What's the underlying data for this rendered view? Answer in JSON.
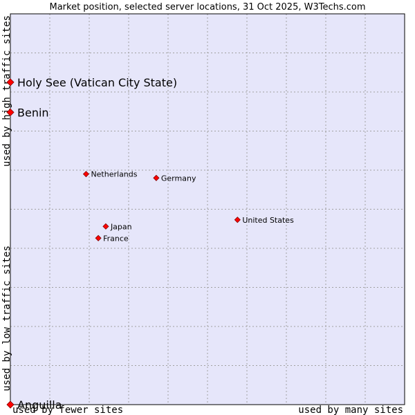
{
  "chart_data": {
    "type": "scatter",
    "title": "Market position, selected server locations, 31 Oct 2025, W3Techs.com",
    "xlabel_left": "used by fewer sites",
    "xlabel_right": "used by many sites",
    "ylabel_bottom": "used by low traffic sites",
    "ylabel_top": "used by high traffic sites",
    "xlim": [
      0,
      100
    ],
    "ylim": [
      0,
      100
    ],
    "grid": true,
    "colors": {
      "plot_bg": "#e6e6fa",
      "grid": "#a0a0a0",
      "marker": "#ff0000",
      "marker_stroke": "#800000"
    },
    "points": [
      {
        "label": "Holy See (Vatican City State)",
        "x": 0.0,
        "y": 82.5,
        "size": "large"
      },
      {
        "label": "Benin",
        "x": 0.0,
        "y": 74.8,
        "size": "large"
      },
      {
        "label": "Netherlands",
        "x": 19.2,
        "y": 59.0,
        "size": "small"
      },
      {
        "label": "Germany",
        "x": 37.0,
        "y": 58.0,
        "size": "small"
      },
      {
        "label": "United States",
        "x": 57.6,
        "y": 47.3,
        "size": "small"
      },
      {
        "label": "Japan",
        "x": 24.2,
        "y": 45.6,
        "size": "small"
      },
      {
        "label": "France",
        "x": 22.3,
        "y": 42.6,
        "size": "small"
      },
      {
        "label": "Anguilla",
        "x": 0.0,
        "y": 0.0,
        "size": "large"
      }
    ]
  }
}
